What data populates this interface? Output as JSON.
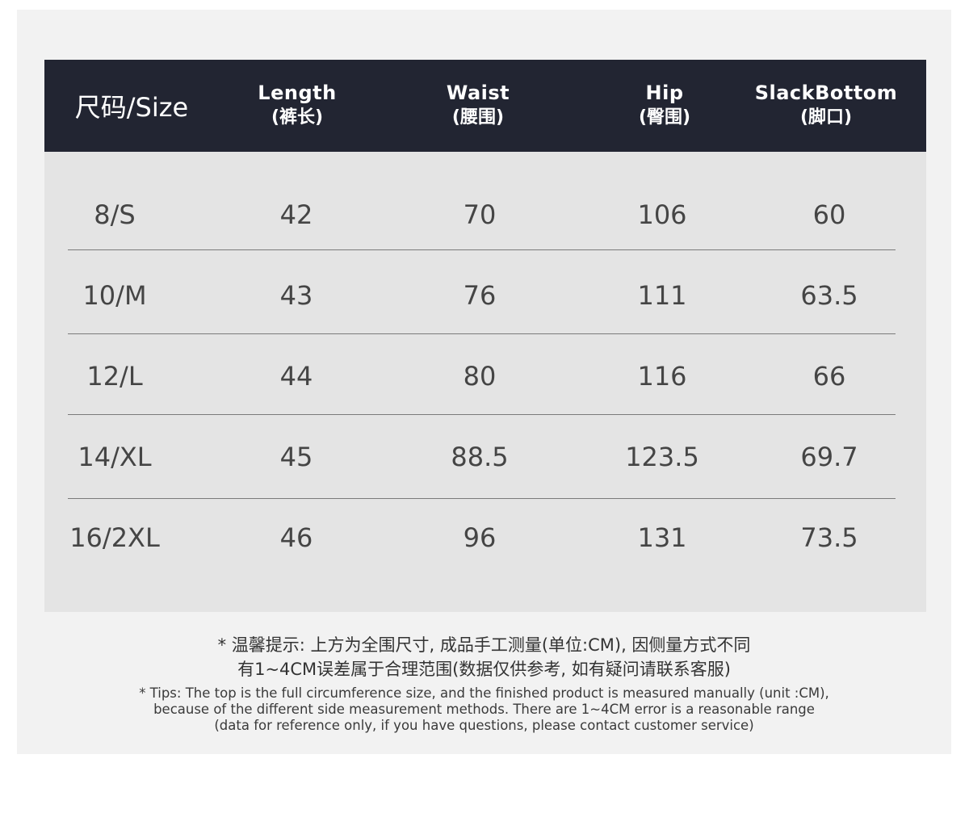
{
  "header": {
    "size": "尺码/Size",
    "length": {
      "en": "Length",
      "zh": "(裤长)"
    },
    "waist": {
      "en": "Waist",
      "zh": "(腰围)"
    },
    "hip": {
      "en": "Hip",
      "zh": "(臀围)"
    },
    "slack_bottom": {
      "en": "SlackBottom",
      "zh": "(脚口)"
    }
  },
  "rows": [
    {
      "size": "8/S",
      "length": "42",
      "waist": "70",
      "hip": "106",
      "slack_bottom": "60"
    },
    {
      "size": "10/M",
      "length": "43",
      "waist": "76",
      "hip": "111",
      "slack_bottom": "63.5"
    },
    {
      "size": "12/L",
      "length": "44",
      "waist": "80",
      "hip": "116",
      "slack_bottom": "66"
    },
    {
      "size": "14/XL",
      "length": "45",
      "waist": "88.5",
      "hip": "123.5",
      "slack_bottom": "69.7"
    },
    {
      "size": "16/2XL",
      "length": "46",
      "waist": "96",
      "hip": "131",
      "slack_bottom": "73.5"
    }
  ],
  "notes": {
    "zh_line1": "* 温馨提示: 上方为全围尺寸, 成品手工测量(单位:CM), 因侧量方式不同",
    "zh_line2": "有1~4CM误差属于合理范围(数据仅供参考, 如有疑问请联系客服)",
    "en_line1": "* Tips: The top is the full circumference size, and the finished product is measured manually (unit :CM),",
    "en_line2": "because of the different side measurement methods. There are 1~4CM error is a reasonable range",
    "en_line3": "(data for reference only, if you have questions, please contact customer service)"
  },
  "colors": {
    "header_bg": "#222532",
    "body_bg": "#e4e4e4",
    "panel_bg": "#f2f2f2"
  }
}
